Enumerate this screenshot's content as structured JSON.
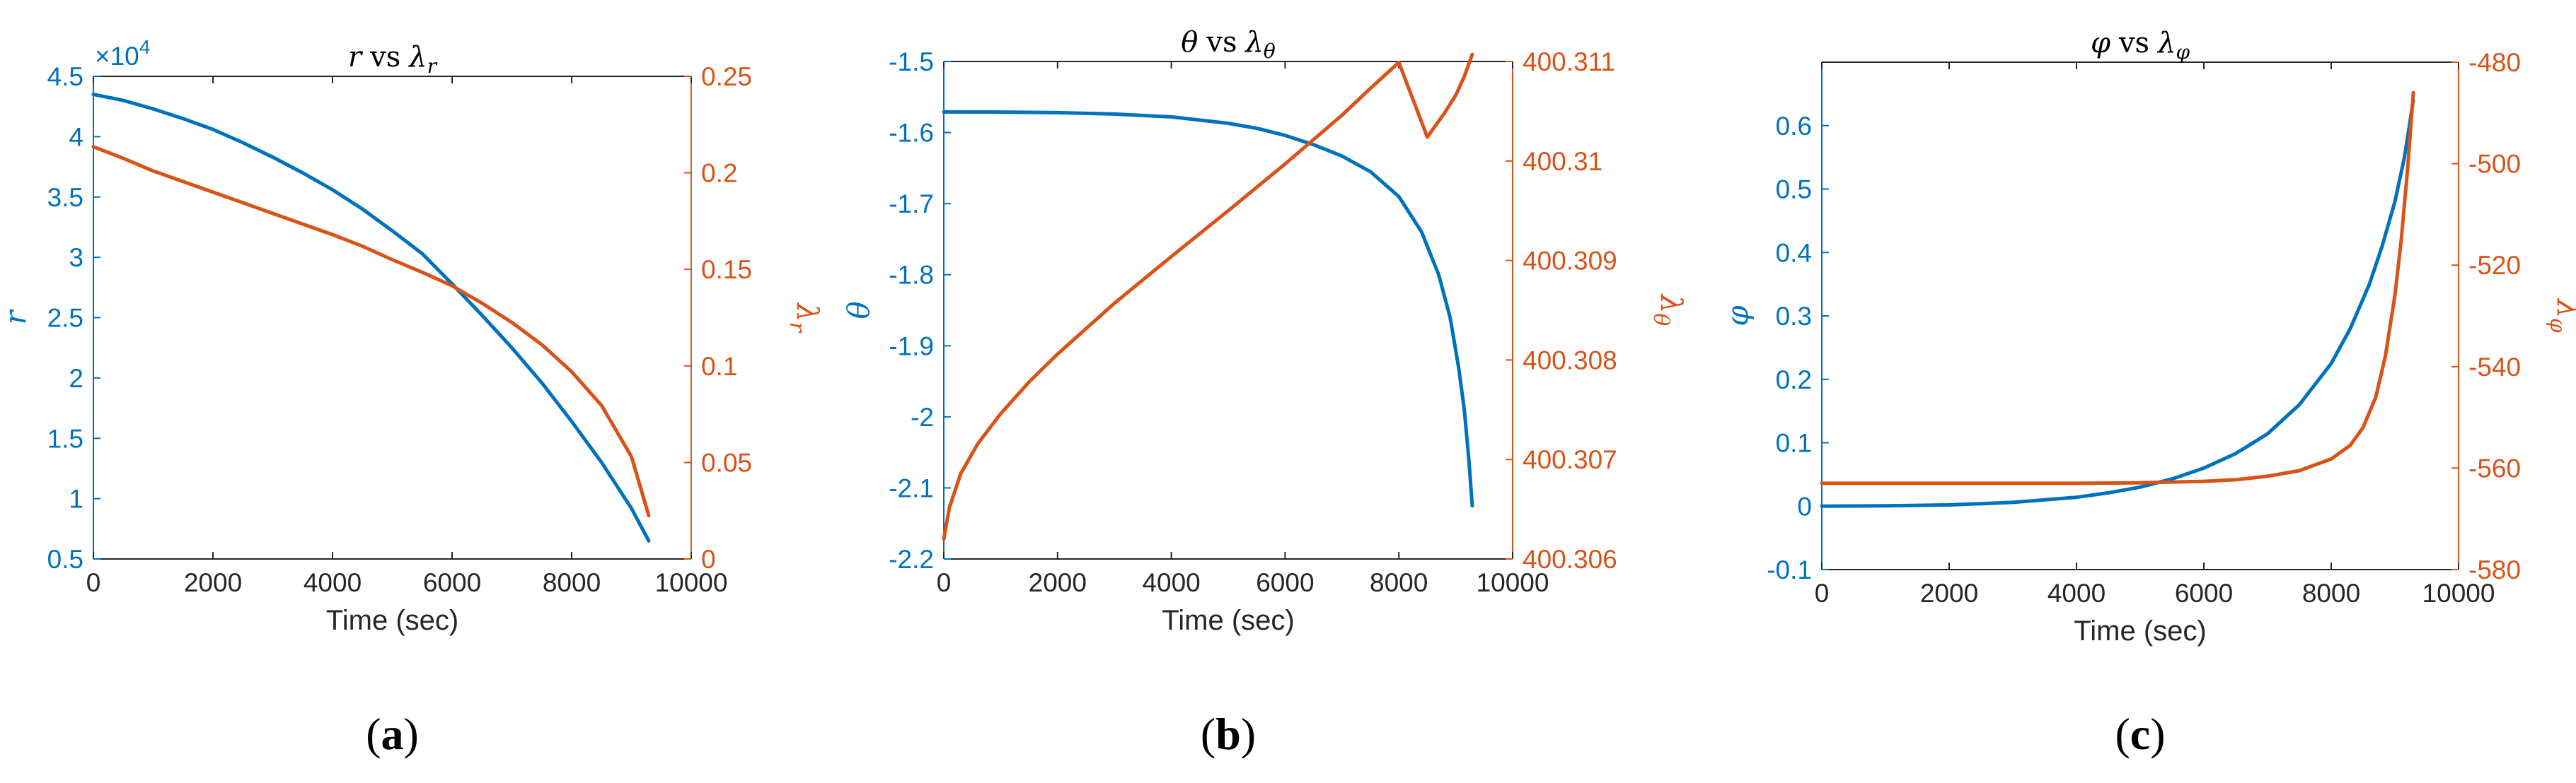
{
  "colors": {
    "left": "#0072BD",
    "right": "#D95319",
    "axis": "#262626"
  },
  "chart_data": [
    {
      "type": "line",
      "panel_label": {
        "open": "(",
        "letter": "a",
        "close": ")"
      },
      "title": {
        "a": "r",
        "vs": "vs",
        "b": "λ",
        "sub": "r"
      },
      "xlabel": "Time (sec)",
      "xlim": [
        0,
        10000
      ],
      "xticks": [
        "0",
        "2000",
        "4000",
        "6000",
        "8000",
        "10000"
      ],
      "left_axis": {
        "label": {
          "main": "r",
          "sub": ""
        },
        "ylim": [
          0.5,
          4.5
        ],
        "ticks": [
          "0.5",
          "1",
          "1.5",
          "2",
          "2.5",
          "3",
          "3.5",
          "4",
          "4.5"
        ],
        "exponent": {
          "base": "×10",
          "power": "4"
        }
      },
      "right_axis": {
        "label": {
          "main": "λ",
          "sub": "r"
        },
        "ylim": [
          0,
          0.25
        ],
        "ticks": [
          "0",
          "0.05",
          "0.1",
          "0.15",
          "0.2",
          "0.25"
        ]
      },
      "series": [
        {
          "axis": "left",
          "color": "#0072BD",
          "x": [
            0,
            500,
            1000,
            1500,
            2000,
            2500,
            3000,
            3500,
            4000,
            4500,
            5000,
            5500,
            6000,
            6500,
            7000,
            7500,
            8000,
            8500,
            9000,
            9290
          ],
          "y": [
            4.35,
            4.3,
            4.23,
            4.15,
            4.06,
            3.95,
            3.83,
            3.7,
            3.56,
            3.4,
            3.22,
            3.03,
            2.78,
            2.52,
            2.25,
            1.96,
            1.64,
            1.3,
            0.92,
            0.65
          ]
        },
        {
          "axis": "right",
          "color": "#D95319",
          "x": [
            0,
            500,
            1000,
            1500,
            2000,
            2500,
            3000,
            3500,
            4000,
            4500,
            5000,
            5500,
            6000,
            6500,
            7000,
            7500,
            8000,
            8500,
            9000,
            9290
          ],
          "y": [
            0.2135,
            0.2075,
            0.201,
            0.1955,
            0.19,
            0.1845,
            0.179,
            0.1735,
            0.168,
            0.162,
            0.155,
            0.1485,
            0.1415,
            0.1325,
            0.1225,
            0.111,
            0.097,
            0.0795,
            0.053,
            0.0225
          ]
        }
      ]
    },
    {
      "type": "line",
      "panel_label": {
        "open": "(",
        "letter": "b",
        "close": ")"
      },
      "title": {
        "a": "θ",
        "vs": "vs",
        "b": "λ",
        "sub": "θ"
      },
      "xlabel": "Time (sec)",
      "xlim": [
        0,
        10000
      ],
      "xticks": [
        "0",
        "2000",
        "4000",
        "6000",
        "8000",
        "10000"
      ],
      "left_axis": {
        "label": {
          "main": "θ",
          "sub": ""
        },
        "ylim": [
          -2.2,
          -1.5
        ],
        "ticks": [
          "-2.2",
          "-2.1",
          "-2",
          "-1.9",
          "-1.8",
          "-1.7",
          "-1.6",
          "-1.5"
        ]
      },
      "right_axis": {
        "label": {
          "main": "λ",
          "sub": "θ"
        },
        "ylim": [
          400.306,
          400.311
        ],
        "ticks": [
          "400.306",
          "400.307",
          "400.308",
          "400.309",
          "400.31",
          "400.311"
        ]
      },
      "series": [
        {
          "axis": "left",
          "color": "#0072BD",
          "x": [
            0,
            1000,
            2000,
            3000,
            4000,
            5000,
            5500,
            6000,
            6500,
            7000,
            7500,
            8000,
            8400,
            8700,
            8900,
            9050,
            9150,
            9230,
            9290
          ],
          "y": [
            -1.571,
            -1.5712,
            -1.572,
            -1.574,
            -1.578,
            -1.587,
            -1.594,
            -1.604,
            -1.617,
            -1.633,
            -1.655,
            -1.69,
            -1.74,
            -1.8,
            -1.86,
            -1.93,
            -1.99,
            -2.06,
            -2.125
          ]
        },
        {
          "axis": "right",
          "color": "#D95319",
          "x": [
            0,
            100,
            300,
            600,
            1000,
            1500,
            2000,
            3000,
            4000,
            5000,
            6000,
            7000,
            7500,
            8000,
            8500,
            8800,
            9000,
            9150,
            9290
          ],
          "y": [
            400.3062,
            400.30652,
            400.30686,
            400.30716,
            400.30746,
            400.30778,
            400.30806,
            400.30857,
            400.30904,
            400.3095,
            400.30997,
            400.31046,
            400.31073,
            400.31099,
            400.31024,
            400.31048,
            400.31066,
            400.31085,
            400.31107
          ]
        }
      ]
    },
    {
      "type": "line",
      "panel_label": {
        "open": "(",
        "letter": "c",
        "close": ")"
      },
      "title": {
        "a": "φ",
        "vs": "vs",
        "b": "λ",
        "sub": "φ"
      },
      "xlabel": "Time (sec)",
      "xlim": [
        0,
        10000
      ],
      "xticks": [
        "0",
        "2000",
        "4000",
        "6000",
        "8000",
        "10000"
      ],
      "left_axis": {
        "label": {
          "main": "φ",
          "sub": ""
        },
        "ylim": [
          -0.1,
          0.7
        ],
        "ticks": [
          "-0.1",
          "0",
          "0.1",
          "0.2",
          "0.3",
          "0.4",
          "0.5",
          "0.6"
        ]
      },
      "right_axis": {
        "label": {
          "main": "λ",
          "sub": "φ"
        },
        "ylim": [
          -580,
          -480
        ],
        "ticks": [
          "-580",
          "-560",
          "-540",
          "-520",
          "-500",
          "-480"
        ]
      },
      "series": [
        {
          "axis": "left",
          "color": "#0072BD",
          "x": [
            0,
            1000,
            2000,
            3000,
            4000,
            4500,
            5000,
            5500,
            6000,
            6500,
            7000,
            7500,
            8000,
            8300,
            8600,
            8800,
            9000,
            9150,
            9290
          ],
          "y": [
            0.0,
            0.0005,
            0.002,
            0.006,
            0.014,
            0.021,
            0.03,
            0.043,
            0.06,
            0.083,
            0.114,
            0.16,
            0.225,
            0.28,
            0.35,
            0.41,
            0.48,
            0.55,
            0.64
          ]
        },
        {
          "axis": "right",
          "color": "#D95319",
          "x": [
            0,
            2000,
            4000,
            5000,
            6000,
            6500,
            7000,
            7500,
            8000,
            8300,
            8500,
            8700,
            8850,
            9000,
            9100,
            9200,
            9290
          ],
          "y": [
            -563.0,
            -563.0,
            -563.0,
            -562.9,
            -562.6,
            -562.3,
            -561.6,
            -560.5,
            -558.2,
            -555.5,
            -552.0,
            -546.0,
            -538.0,
            -526.0,
            -515.0,
            -501.0,
            -486.0
          ]
        }
      ]
    }
  ]
}
